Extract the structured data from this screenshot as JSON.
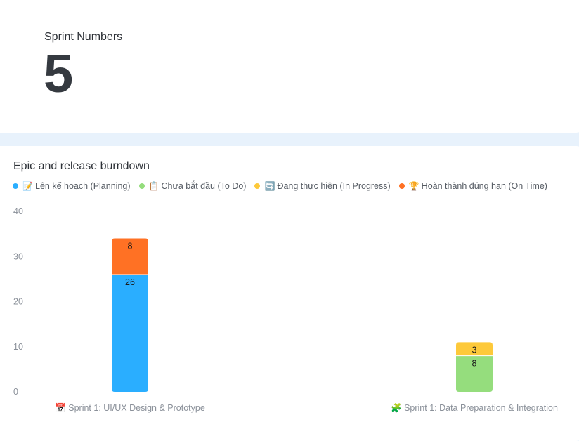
{
  "kpi": {
    "label": "Sprint Numbers",
    "value": "5"
  },
  "chart_data": {
    "type": "bar",
    "stacked": true,
    "title": "Epic and release burndown",
    "xlabel": "",
    "ylabel": "",
    "ylim": [
      0,
      40
    ],
    "yticks": [
      0,
      10,
      20,
      30,
      40
    ],
    "grid": false,
    "legend_position": "top-left",
    "categories": [
      {
        "icon": "calendar-icon",
        "label": "Sprint 1: UI/UX Design & Prototype"
      },
      {
        "icon": "puzzle-icon",
        "label": "Sprint 1: Data Preparation & Integration"
      }
    ],
    "series": [
      {
        "name": "Lên kế hoạch (Planning)",
        "icon": "memo-icon",
        "color": "#2aaeff",
        "values": [
          26,
          0
        ]
      },
      {
        "name": "Chưa bắt đầu (To Do)",
        "icon": "clipboard-icon",
        "color": "#95dd7d",
        "values": [
          0,
          8
        ]
      },
      {
        "name": "Đang thực hiện (In Progress)",
        "icon": "refresh-icon",
        "color": "#fdc93a",
        "values": [
          0,
          3
        ]
      },
      {
        "name": "Hoàn thành đúng hạn (On Time)",
        "icon": "trophy-icon",
        "color": "#ff7124",
        "values": [
          8,
          0
        ]
      }
    ]
  }
}
